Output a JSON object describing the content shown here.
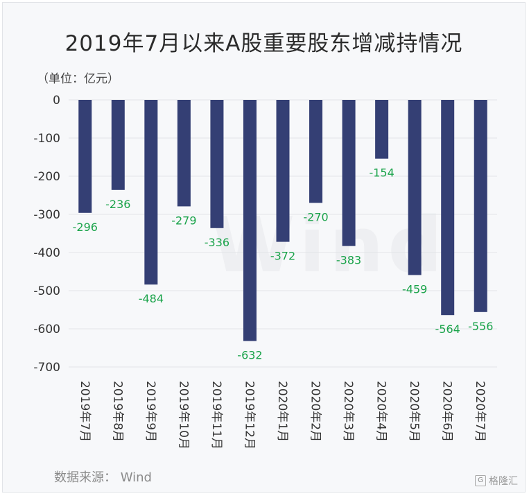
{
  "title": "2019年7月以来A股重要股东增减持情况",
  "unit": "（单位：亿元）",
  "source": "数据来源： Wind",
  "watermark": "Wind",
  "brand": "格隆汇",
  "colors": {
    "bar": "#343f74",
    "label": "#1aa34a",
    "grid": "#e3e4e8",
    "axis_text": "#333333"
  },
  "chart_data": {
    "type": "bar",
    "title": "2019年7月以来A股重要股东增减持情况",
    "ylabel": "（单位：亿元）",
    "xlabel": "",
    "ylim": [
      -700,
      0
    ],
    "yticks": [
      0,
      -100,
      -200,
      -300,
      -400,
      -500,
      -600,
      -700
    ],
    "ytick_labels": [
      "0",
      "-100",
      "-200",
      "-300",
      "-400",
      "-500",
      "-600",
      "-700"
    ],
    "grid": true,
    "categories": [
      "2019年7月",
      "2019年8月",
      "2019年9月",
      "2019年10月",
      "2019年11月",
      "2019年12月",
      "2020年1月",
      "2020年2月",
      "2020年3月",
      "2020年4月",
      "2020年5月",
      "2020年6月",
      "2020年7月"
    ],
    "values": [
      -296,
      -236,
      -484,
      -279,
      -336,
      -632,
      -372,
      -270,
      -383,
      -154,
      -459,
      -564,
      -556
    ],
    "data_labels": [
      "-296",
      "-236",
      "-484",
      "-279",
      "-336",
      "-632",
      "-372",
      "-270",
      "-383",
      "-154",
      "-459",
      "-564",
      "-556"
    ]
  }
}
